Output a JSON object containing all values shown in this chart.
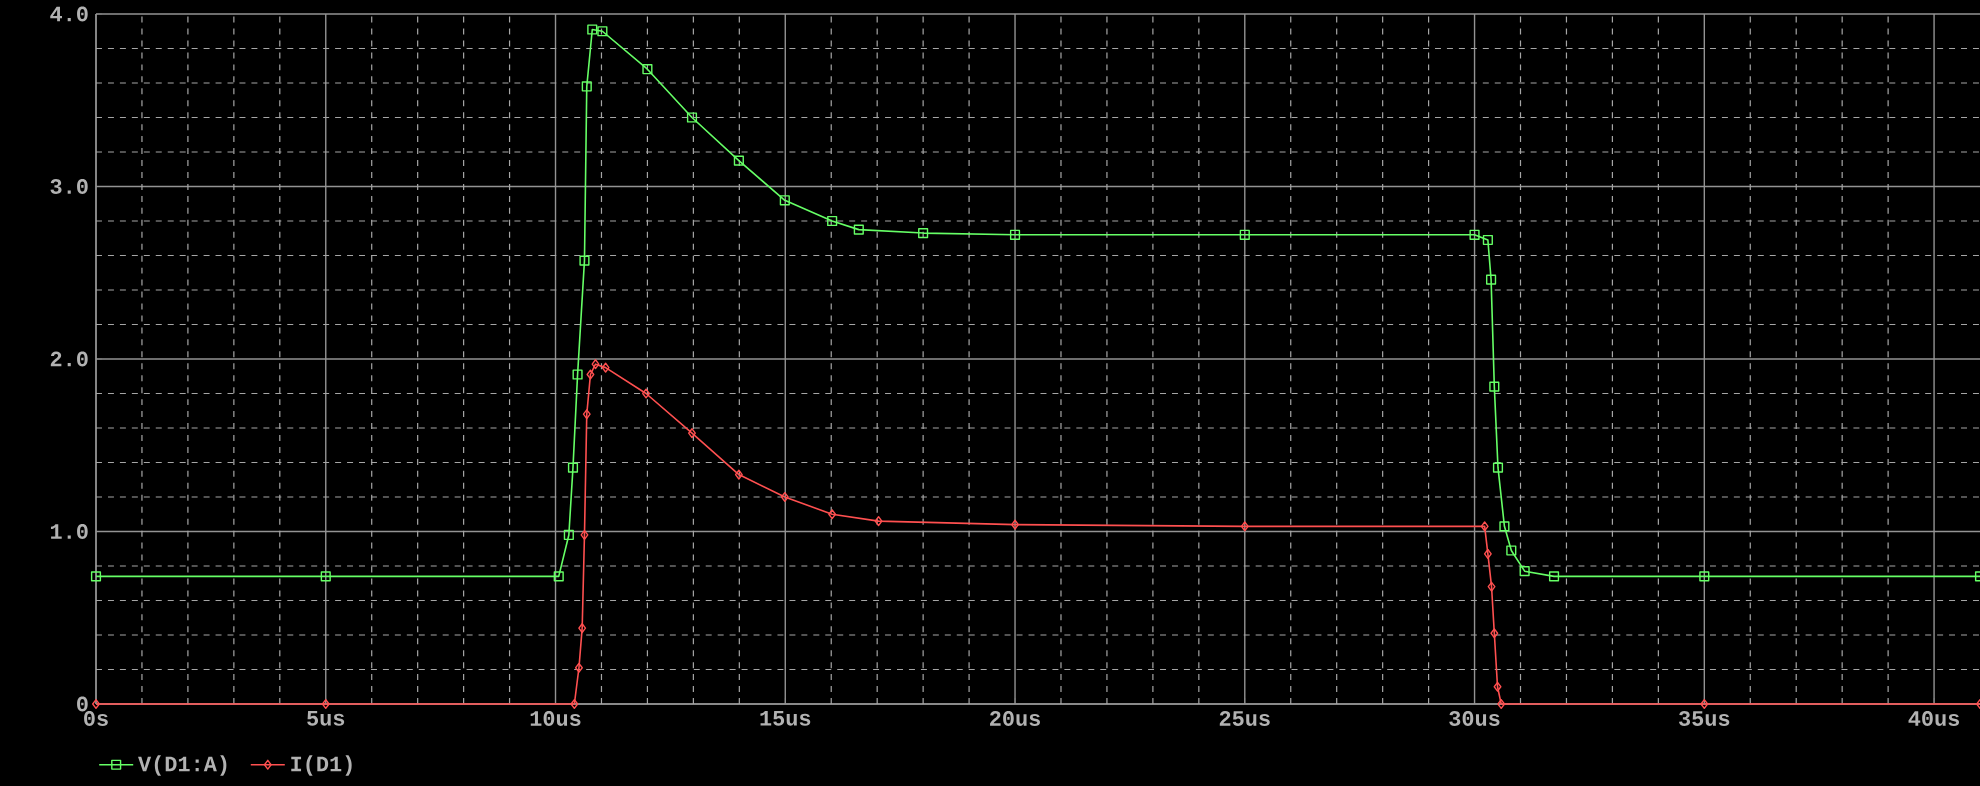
{
  "chart_data": {
    "type": "line",
    "xlim": [
      0,
      41
    ],
    "ylim": [
      0,
      4
    ],
    "xticks": [
      {
        "value": 0,
        "label": "0s"
      },
      {
        "value": 1,
        "label": null
      },
      {
        "value": 2,
        "label": null
      },
      {
        "value": 3,
        "label": null
      },
      {
        "value": 4,
        "label": null
      },
      {
        "value": 5,
        "label": "5us"
      },
      {
        "value": 6,
        "label": null
      },
      {
        "value": 7,
        "label": null
      },
      {
        "value": 8,
        "label": null
      },
      {
        "value": 9,
        "label": null
      },
      {
        "value": 10,
        "label": "10us"
      },
      {
        "value": 11,
        "label": null
      },
      {
        "value": 12,
        "label": null
      },
      {
        "value": 13,
        "label": null
      },
      {
        "value": 14,
        "label": null
      },
      {
        "value": 15,
        "label": "15us"
      },
      {
        "value": 16,
        "label": null
      },
      {
        "value": 17,
        "label": null
      },
      {
        "value": 18,
        "label": null
      },
      {
        "value": 19,
        "label": null
      },
      {
        "value": 20,
        "label": "20us"
      },
      {
        "value": 21,
        "label": null
      },
      {
        "value": 22,
        "label": null
      },
      {
        "value": 23,
        "label": null
      },
      {
        "value": 24,
        "label": null
      },
      {
        "value": 25,
        "label": "25us"
      },
      {
        "value": 26,
        "label": null
      },
      {
        "value": 27,
        "label": null
      },
      {
        "value": 28,
        "label": null
      },
      {
        "value": 29,
        "label": null
      },
      {
        "value": 30,
        "label": "30us"
      },
      {
        "value": 31,
        "label": null
      },
      {
        "value": 32,
        "label": null
      },
      {
        "value": 33,
        "label": null
      },
      {
        "value": 34,
        "label": null
      },
      {
        "value": 35,
        "label": "35us"
      },
      {
        "value": 36,
        "label": null
      },
      {
        "value": 37,
        "label": null
      },
      {
        "value": 38,
        "label": null
      },
      {
        "value": 39,
        "label": null
      },
      {
        "value": 40,
        "label": "40us"
      }
    ],
    "yticks": [
      0,
      {
        "value": 0.2,
        "label": null
      },
      {
        "value": 0.4,
        "label": null
      },
      {
        "value": 0.6,
        "label": null
      },
      {
        "value": 0.8,
        "label": null
      },
      {
        "value": 1,
        "label": "1.0"
      },
      {
        "value": 1.2,
        "label": null
      },
      {
        "value": 1.4,
        "label": null
      },
      {
        "value": 1.6,
        "label": null
      },
      {
        "value": 1.8,
        "label": null
      },
      {
        "value": 2,
        "label": "2.0"
      },
      {
        "value": 2.2,
        "label": null
      },
      {
        "value": 2.4,
        "label": null
      },
      {
        "value": 2.6,
        "label": null
      },
      {
        "value": 2.8,
        "label": null
      },
      {
        "value": 3,
        "label": "3.0"
      },
      {
        "value": 3.2,
        "label": null
      },
      {
        "value": 3.4,
        "label": null
      },
      {
        "value": 3.6,
        "label": null
      },
      {
        "value": 3.8,
        "label": null
      },
      {
        "value": 4,
        "label": "4.0"
      }
    ],
    "grid": true,
    "legend": "bottom left",
    "line_style": "solid",
    "series": [
      {
        "name": "V(D1:A)",
        "color": "#66ff66",
        "marker": "square",
        "x": [
          0,
          5,
          10.07,
          10.29,
          10.38,
          10.48,
          10.63,
          10.68,
          10.8,
          11.02,
          12.0,
          12.97,
          13.99,
          14.99,
          16.02,
          16.6,
          18,
          20,
          25,
          30.0,
          30.29,
          30.36,
          30.43,
          30.51,
          30.65,
          30.8,
          31.09,
          31.73,
          35,
          41
        ],
        "values": [
          0.74,
          0.74,
          0.74,
          0.98,
          1.37,
          1.91,
          2.57,
          3.58,
          3.91,
          3.9,
          3.68,
          3.4,
          3.15,
          2.92,
          2.8,
          2.75,
          2.73,
          2.72,
          2.72,
          2.72,
          2.69,
          2.46,
          1.84,
          1.37,
          1.03,
          0.89,
          0.77,
          0.74,
          0.74,
          0.74
        ]
      },
      {
        "name": "I(D1)",
        "color": "#ff5050",
        "marker": "diamond",
        "x": [
          0,
          5,
          10.41,
          10.51,
          10.58,
          10.63,
          10.68,
          10.76,
          10.87,
          11.09,
          11.97,
          12.97,
          13.99,
          14.99,
          16.02,
          17.03,
          20,
          25,
          30.22,
          30.29,
          30.37,
          30.43,
          30.5,
          30.58,
          35,
          41
        ],
        "values": [
          0,
          0,
          0,
          0.21,
          0.44,
          0.98,
          1.68,
          1.91,
          1.97,
          1.95,
          1.8,
          1.57,
          1.33,
          1.2,
          1.1,
          1.06,
          1.04,
          1.03,
          1.03,
          0.87,
          0.68,
          0.41,
          0.1,
          0,
          0,
          0
        ]
      }
    ]
  }
}
